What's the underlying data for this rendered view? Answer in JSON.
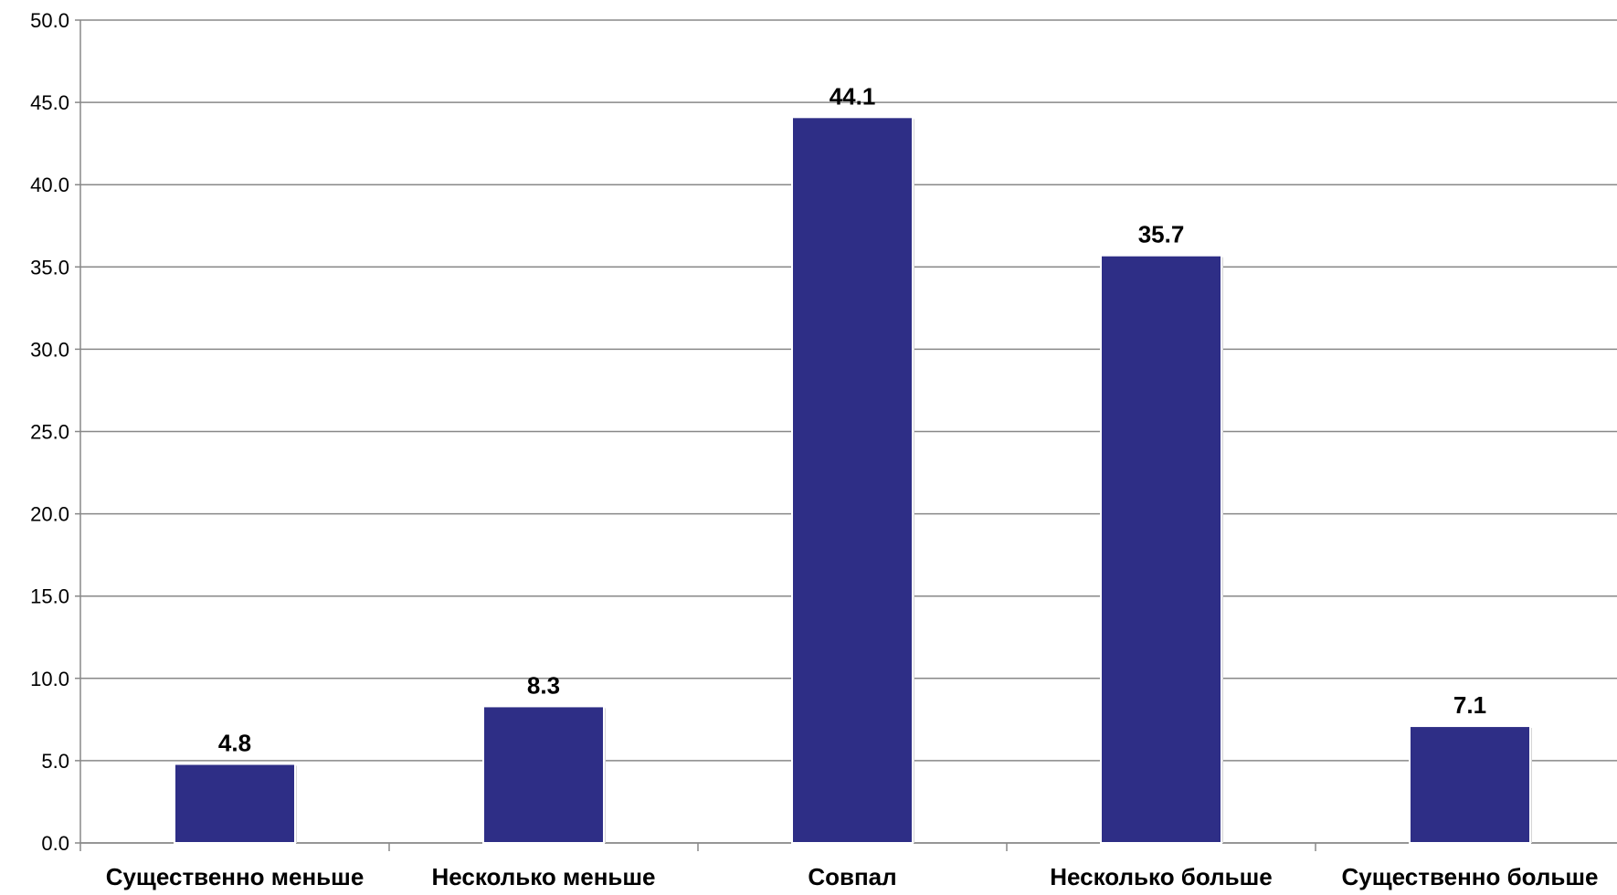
{
  "chart_data": {
    "type": "bar",
    "title": "",
    "xlabel": "",
    "ylabel": "",
    "categories": [
      "Существенно меньше",
      "Несколько меньше",
      "Совпал",
      "Несколько больше",
      "Существенно больше"
    ],
    "values": [
      4.8,
      8.3,
      44.1,
      35.7,
      7.1
    ],
    "data_labels": [
      "4.8",
      "8.3",
      "44.1",
      "35.7",
      "7.1"
    ],
    "ylim": [
      0,
      50
    ],
    "y_ticks": [
      "0.0",
      "5.0",
      "10.0",
      "15.0",
      "20.0",
      "25.0",
      "30.0",
      "35.0",
      "40.0",
      "45.0",
      "50.0"
    ],
    "grid": true,
    "legend": "none",
    "bar_color": "#2e2e86"
  }
}
